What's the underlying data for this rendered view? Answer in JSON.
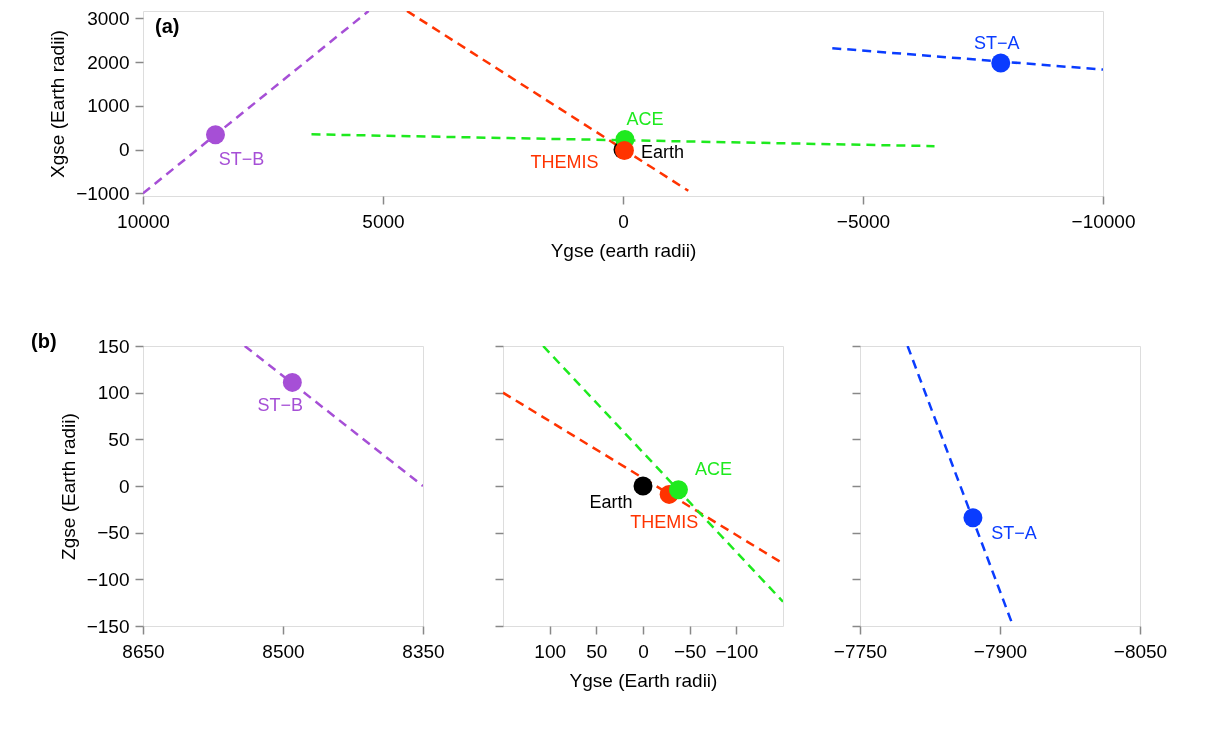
{
  "chart_data": [
    {
      "type": "scatter",
      "annotations": [
        "(a)"
      ],
      "xlabel": "Ygse (earth radii)",
      "ylabel": "Xgse (Earth radii)",
      "xlim": [
        10000,
        -10000
      ],
      "ylim": [
        -1060,
        3170
      ],
      "xticks": [
        10000,
        5000,
        0,
        -5000,
        -10000
      ],
      "yticks": [
        -1000,
        0,
        1000,
        2000,
        3000
      ],
      "marker": "circle",
      "series": [
        {
          "type": "line",
          "line_style": "dashed",
          "marker": "none",
          "color": "#a64fd6",
          "x": [
            10000,
            5300
          ],
          "values": [
            -1000,
            3170
          ]
        },
        {
          "type": "line",
          "line_style": "dashed",
          "marker": "none",
          "color": "#ff3300",
          "x": [
            4500,
            -1360
          ],
          "values": [
            3170,
            -940
          ]
        },
        {
          "type": "line",
          "line_style": "dashed",
          "marker": "none",
          "color": "#1eea1e",
          "x": [
            6490,
            -6490
          ],
          "values": [
            350,
            80
          ]
        },
        {
          "type": "line",
          "line_style": "dashed",
          "marker": "none",
          "color": "#0a3cff",
          "x": [
            -4360,
            -10000
          ],
          "values": [
            2320,
            1830
          ]
        },
        {
          "name": "ST−B",
          "color": "#a64fd6",
          "x": [
            8490
          ],
          "values": [
            340
          ]
        },
        {
          "name": "Earth",
          "color": "#000000",
          "x": [
            0
          ],
          "values": [
            0
          ]
        },
        {
          "name": "ACE",
          "color": "#1eea1e",
          "x": [
            -40
          ],
          "values": [
            230
          ]
        },
        {
          "name": "THEMIS",
          "color": "#ff3300",
          "x": [
            -30
          ],
          "values": [
            -20
          ]
        },
        {
          "name": "ST−A",
          "color": "#0a3cff",
          "x": [
            -7870
          ],
          "values": [
            1980
          ]
        }
      ]
    },
    {
      "type": "scatter",
      "annotations": [
        "(b)"
      ],
      "ylabel": "Zgse (Earth radii)",
      "xlim": [
        8650,
        8350
      ],
      "ylim": [
        -150,
        150
      ],
      "xticks": [
        8650,
        8500,
        8350
      ],
      "yticks": [
        -150,
        -100,
        -50,
        0,
        50,
        100,
        150
      ],
      "marker": "circle",
      "series": [
        {
          "type": "line",
          "line_style": "dashed",
          "marker": "none",
          "color": "#a64fd6",
          "x": [
            8541,
            8350
          ],
          "values": [
            150,
            0
          ]
        },
        {
          "name": "ST−B",
          "color": "#a64fd6",
          "x": [
            8490
          ],
          "values": [
            111
          ]
        }
      ]
    },
    {
      "type": "scatter",
      "xlabel": "Ygse (Earth radii)",
      "xlim": [
        150,
        -150
      ],
      "ylim": [
        -150,
        150
      ],
      "xticks": [
        100,
        50,
        0,
        -50,
        -100
      ],
      "yticks": [
        -150,
        -100,
        -50,
        0,
        50,
        100,
        150
      ],
      "tick_labels": "x",
      "marker": "circle",
      "series": [
        {
          "type": "line",
          "line_style": "dashed",
          "marker": "none",
          "color": "#ff3300",
          "x": [
            150,
            -150
          ],
          "values": [
            100,
            -83
          ]
        },
        {
          "type": "line",
          "line_style": "dashed",
          "marker": "none",
          "color": "#1eea1e",
          "x": [
            107,
            -150
          ],
          "values": [
            150,
            -124
          ]
        },
        {
          "name": "Earth",
          "color": "#000000",
          "x": [
            0
          ],
          "values": [
            0
          ]
        },
        {
          "name": "THEMIS",
          "color": "#ff3300",
          "x": [
            -28
          ],
          "values": [
            -9
          ]
        },
        {
          "name": "ACE",
          "color": "#1eea1e",
          "x": [
            -38
          ],
          "values": [
            -4
          ]
        }
      ]
    },
    {
      "type": "scatter",
      "xlim": [
        -7750,
        -8050
      ],
      "ylim": [
        -150,
        150
      ],
      "xticks": [
        -7750,
        -7900,
        -8050
      ],
      "yticks": [
        -150,
        -100,
        -50,
        0,
        50,
        100,
        150
      ],
      "tick_labels": "x",
      "marker": "circle",
      "series": [
        {
          "type": "line",
          "line_style": "dashed",
          "marker": "none",
          "color": "#0a3cff",
          "x": [
            -7801,
            -7914
          ],
          "values": [
            150,
            -150
          ]
        },
        {
          "name": "ST−A",
          "color": "#0a3cff",
          "x": [
            -7871
          ],
          "values": [
            -34
          ]
        }
      ]
    }
  ]
}
